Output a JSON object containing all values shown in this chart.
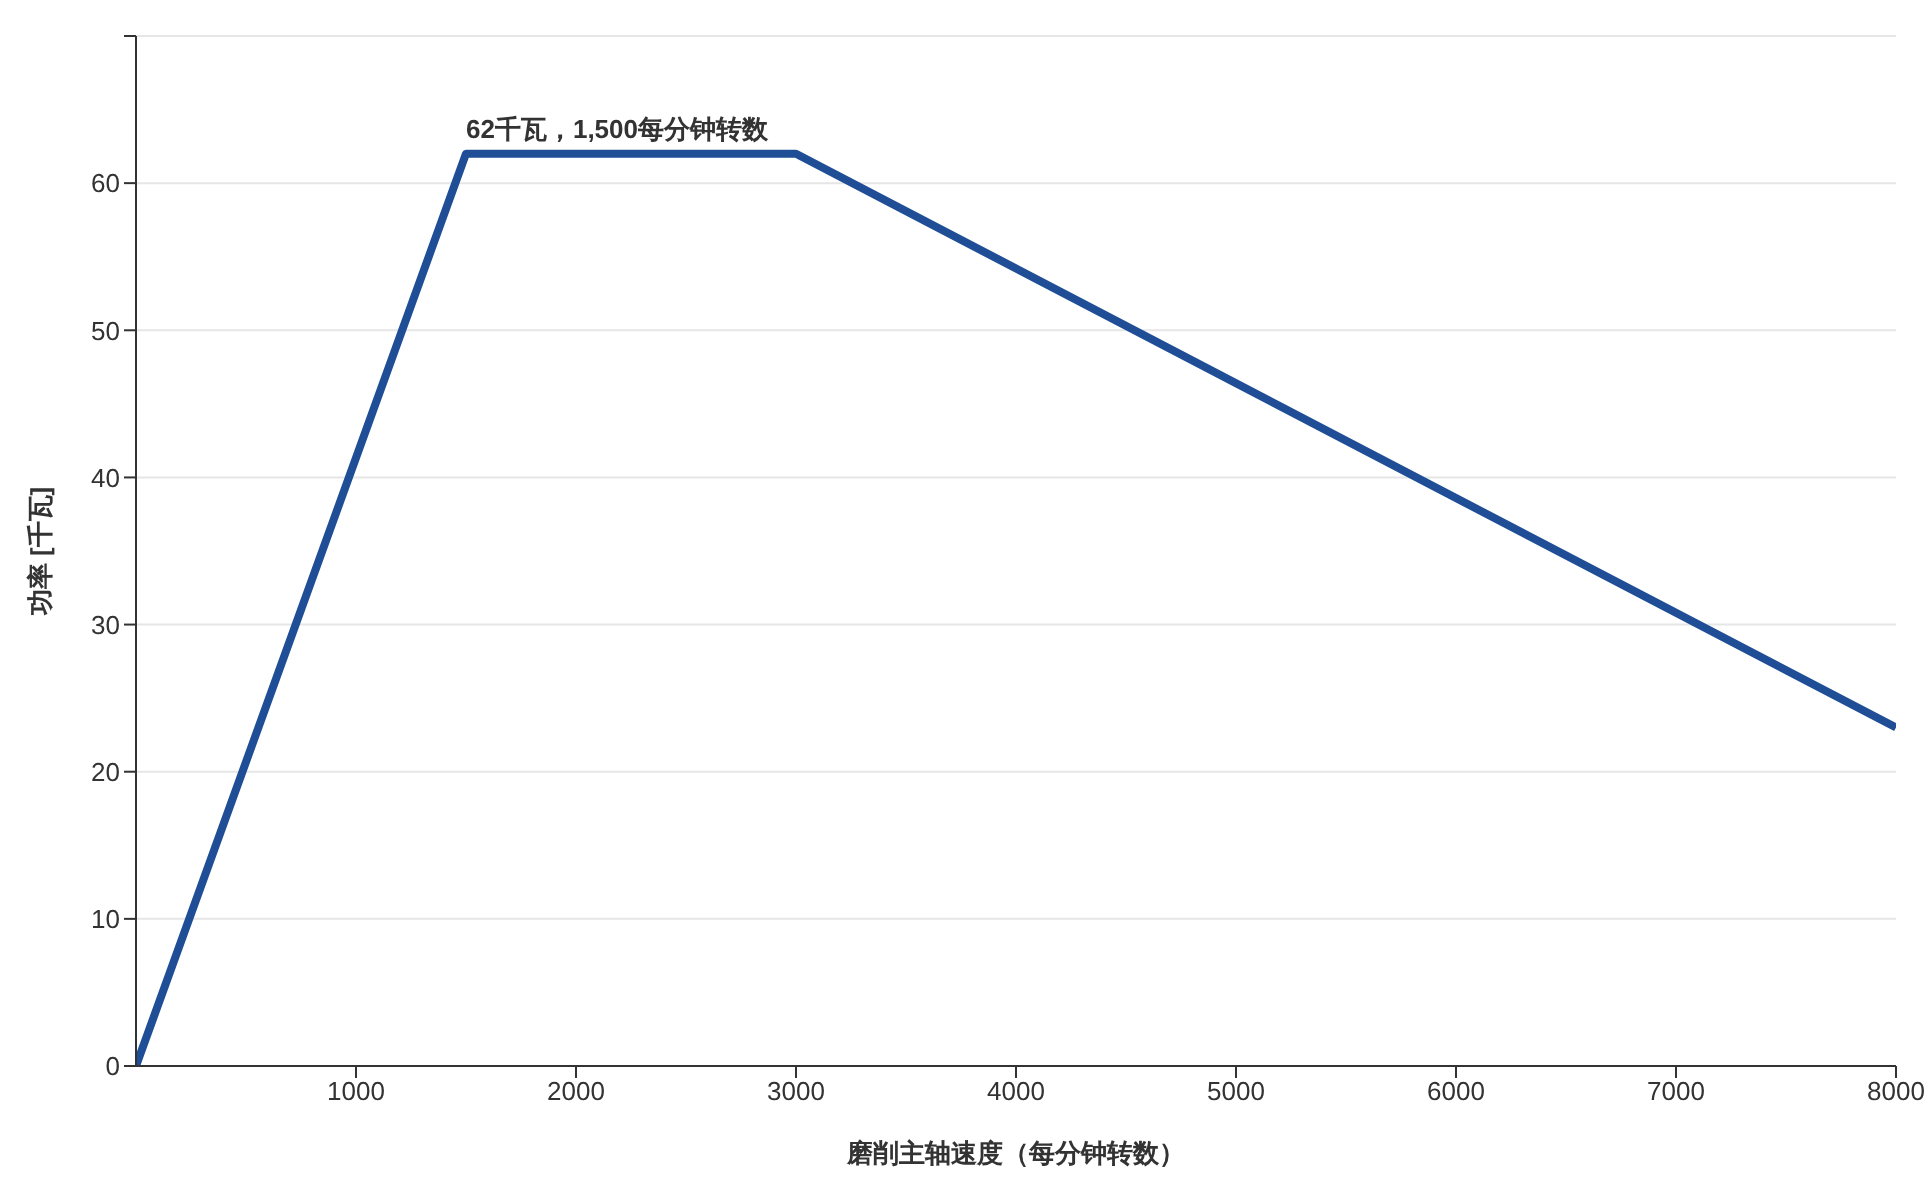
{
  "chart_data": {
    "type": "line",
    "xlabel": "磨削主轴速度（每分钟转数）",
    "ylabel": "功率 [千瓦]",
    "x": [
      0,
      1500,
      3000,
      8000
    ],
    "series": [
      {
        "color": "#1f4e96",
        "values": [
          0,
          62,
          62,
          23
        ]
      }
    ],
    "xlim": [
      0,
      8000
    ],
    "xticks": [
      1000,
      2000,
      3000,
      4000,
      5000,
      6000,
      7000,
      8000
    ],
    "ylim": [
      0,
      70
    ],
    "yticks": [
      0,
      10,
      20,
      30,
      40,
      50,
      60,
      {
        "value": 70,
        "label": null
      }
    ],
    "grid": "y",
    "marker": "none",
    "line_style": "solid",
    "annotations": [
      {
        "text": "62千瓦，1,500每分钟转数",
        "x": 1500,
        "y": 62
      }
    ]
  }
}
